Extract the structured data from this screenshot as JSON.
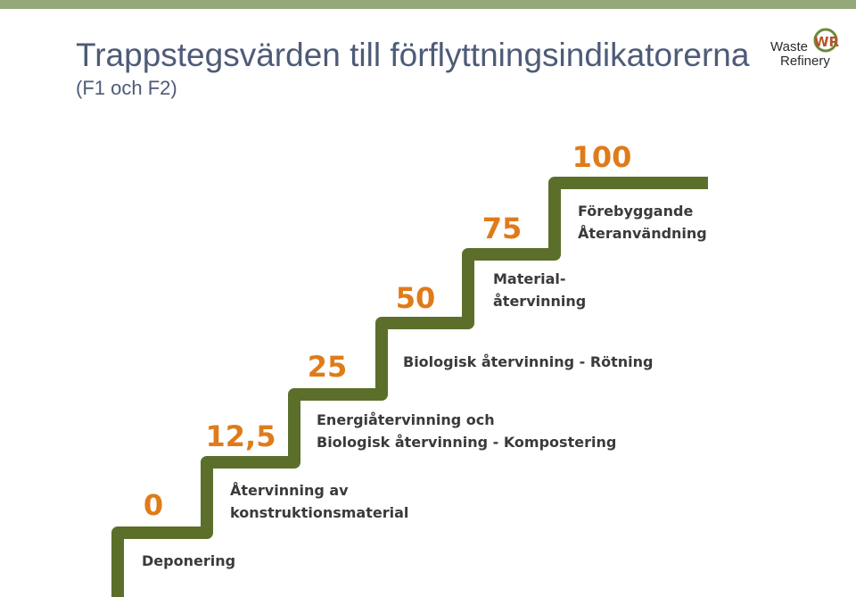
{
  "header": {
    "title": "Trappstegsvärden till förflyttningsindikatorerna",
    "subtitle": "(F1 och F2)"
  },
  "logo": {
    "mark": "WR",
    "line1": "Waste",
    "line2": "Refinery"
  },
  "steps": [
    {
      "value": "0",
      "description": [
        "Deponering"
      ]
    },
    {
      "value": "12,5",
      "description": [
        "Återvinning av",
        "konstruktionsmaterial"
      ]
    },
    {
      "value": "25",
      "description": [
        "Energiåtervinning och",
        "Biologisk återvinning - Kompostering"
      ]
    },
    {
      "value": "50",
      "description": [
        "Biologisk återvinning - Rötning"
      ]
    },
    {
      "value": "75",
      "description": [
        "Material-",
        "återvinning"
      ]
    },
    {
      "value": "100",
      "description": [
        "Förebyggande",
        "Återanvändning"
      ]
    }
  ]
}
